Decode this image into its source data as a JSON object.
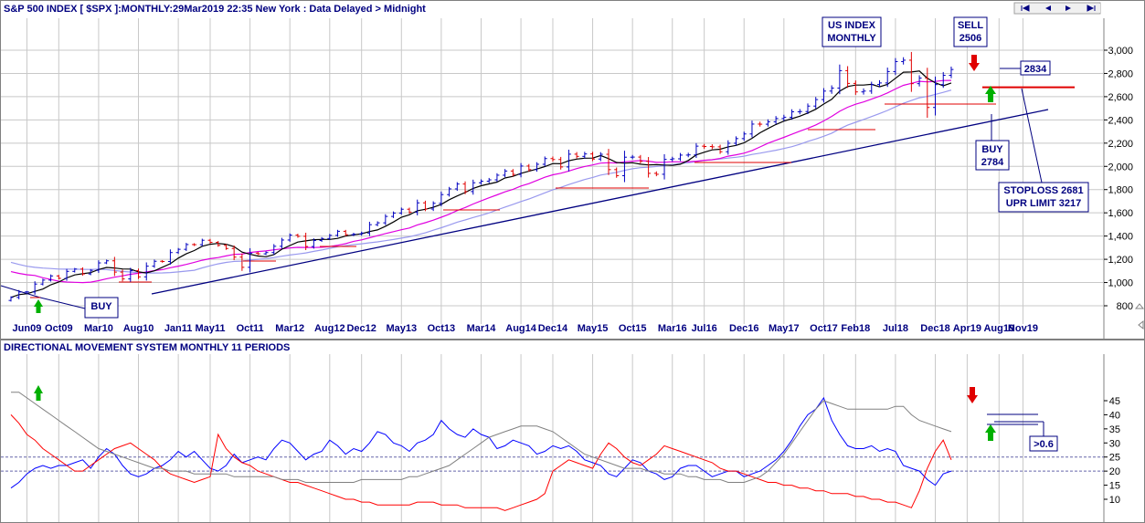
{
  "header": {
    "title": "S&P 500 INDEX [ $SPX ]:MONTHLY:29Mar2019 22:35 New York : Data Delayed > Midnight",
    "nav": [
      "first",
      "prev",
      "next",
      "last"
    ]
  },
  "lower_panel": {
    "title": "DIRECTIONAL MOVEMENT SYSTEM MONTHLY 11 PERIODS"
  },
  "annotations": {
    "us_index": [
      "US INDEX",
      "MONTHLY"
    ],
    "sell": [
      "SELL",
      "2506"
    ],
    "last_price": "2834",
    "buy_2784": [
      "BUY",
      "2784"
    ],
    "stoploss": [
      "STOPLOSS 2681",
      "UPR LIMIT 3217"
    ],
    "buy_2009": "BUY",
    "adx_note": ">0.6"
  },
  "colors": {
    "up_bar": "#0000c0",
    "down_bar": "#e00000",
    "sma_short": "#000000",
    "sma_medium": "#e000e0",
    "sma_long": "#9999ee",
    "trendline": "#000080",
    "support": "#e00000",
    "plus_di": "#0000ff",
    "minus_di": "#ff0000",
    "adx": "#808080",
    "grid": "#c8c8c8",
    "ref_line": "#6666aa"
  },
  "chart_data": [
    {
      "type": "ohlc",
      "title": "S&P 500 INDEX [ $SPX ]:MONTHLY:29Mar2019 22:35 New York : Data Delayed > Midnight",
      "x_tick_labels": [
        "Jun09",
        "Oct09",
        "Mar10",
        "Aug10",
        "Jan11",
        "May11",
        "Oct11",
        "Mar12",
        "Aug12",
        "Dec12",
        "May13",
        "Oct13",
        "Mar14",
        "Aug14",
        "Dec14",
        "May15",
        "Oct15",
        "Mar16",
        "Jul16",
        "Dec16",
        "May17",
        "Oct17",
        "Feb18",
        "Jul18",
        "Dec18",
        "Apr19",
        "Aug19",
        "Nov19"
      ],
      "y_ticks": [
        800,
        1000,
        1200,
        1400,
        1600,
        1800,
        2000,
        2200,
        2400,
        2600,
        2800,
        3000
      ],
      "ylim": [
        780,
        3060
      ],
      "x_start": "2009-04",
      "closes": [
        872,
        919,
        919,
        987,
        1021,
        1057,
        1036,
        1096,
        1116,
        1074,
        1105,
        1169,
        1187,
        1090,
        1031,
        1102,
        1049,
        1141,
        1183,
        1181,
        1258,
        1286,
        1327,
        1326,
        1364,
        1346,
        1320,
        1293,
        1219,
        1131,
        1253,
        1247,
        1258,
        1312,
        1366,
        1408,
        1398,
        1310,
        1362,
        1379,
        1406,
        1441,
        1412,
        1416,
        1426,
        1498,
        1514,
        1569,
        1598,
        1631,
        1606,
        1686,
        1633,
        1682,
        1757,
        1806,
        1848,
        1783,
        1859,
        1872,
        1884,
        1924,
        1960,
        1931,
        2003,
        1972,
        2018,
        2067,
        2059,
        1995,
        2105,
        2086,
        2107,
        2063,
        2104,
        1972,
        1920,
        2079,
        2080,
        2044,
        1940,
        1932,
        2060,
        2065,
        2097,
        2099,
        2174,
        2171,
        2168,
        2126,
        2199,
        2239,
        2279,
        2364,
        2363,
        2384,
        2412,
        2423,
        2470,
        2472,
        2519,
        2575,
        2648,
        2674,
        2824,
        2714,
        2641,
        2648,
        2705,
        2718,
        2816,
        2902,
        2914,
        2712,
        2760,
        2507,
        2704,
        2784,
        2834
      ],
      "moving_averages": [
        "sma_short",
        "sma_medium",
        "sma_long"
      ],
      "horizontal_levels": [
        2681,
        2784
      ],
      "annotation_prices": {
        "sell": 2506,
        "buy": 2784,
        "last": 2834,
        "stoploss": 2681,
        "upper_limit": 3217
      }
    },
    {
      "type": "line",
      "title": "DIRECTIONAL MOVEMENT SYSTEM MONTHLY 11 PERIODS",
      "y_ticks": [
        10,
        15,
        20,
        25,
        30,
        35,
        40,
        45
      ],
      "ylim": [
        5,
        50
      ],
      "reference_lines": [
        20,
        25
      ],
      "series": [
        {
          "key": "plus_di",
          "values": [
            14,
            16,
            19,
            21,
            22,
            21,
            22,
            22,
            23,
            24,
            21,
            25,
            28,
            26,
            22,
            19,
            18,
            19,
            21,
            22,
            24,
            27,
            25,
            27,
            24,
            21,
            20,
            22,
            26,
            23,
            24,
            25,
            24,
            28,
            31,
            30,
            27,
            24,
            26,
            27,
            31,
            29,
            26,
            28,
            27,
            30,
            34,
            33,
            30,
            29,
            27,
            30,
            31,
            33,
            38,
            35,
            33,
            32,
            35,
            33,
            32,
            28,
            29,
            31,
            30,
            29,
            26,
            27,
            29,
            28,
            29,
            27,
            24,
            23,
            22,
            19,
            18,
            21,
            24,
            23,
            20,
            19,
            17,
            18,
            21,
            22,
            22,
            20,
            18,
            19,
            20,
            20,
            18,
            19,
            20,
            22,
            24,
            27,
            31,
            36,
            40,
            42,
            46,
            38,
            33,
            29,
            28,
            28,
            29,
            27,
            28,
            27,
            22,
            21,
            20,
            17,
            15,
            19,
            20
          ]
        },
        {
          "key": "minus_di",
          "values": [
            40,
            37,
            33,
            31,
            28,
            26,
            24,
            22,
            20,
            20,
            22,
            24,
            26,
            28,
            29,
            30,
            28,
            26,
            24,
            21,
            19,
            18,
            17,
            16,
            17,
            18,
            33,
            28,
            25,
            23,
            22,
            20,
            19,
            18,
            17,
            16,
            16,
            15,
            14,
            13,
            12,
            11,
            10,
            10,
            9,
            9,
            8,
            8,
            8,
            8,
            8,
            9,
            9,
            9,
            8,
            8,
            8,
            7,
            7,
            7,
            7,
            7,
            6,
            7,
            8,
            9,
            10,
            12,
            20,
            22,
            24,
            23,
            22,
            21,
            26,
            30,
            28,
            25,
            23,
            22,
            24,
            26,
            29,
            28,
            27,
            26,
            25,
            24,
            23,
            21,
            20,
            20,
            19,
            18,
            17,
            16,
            16,
            15,
            15,
            14,
            14,
            13,
            13,
            12,
            12,
            12,
            11,
            11,
            10,
            10,
            9,
            9,
            8,
            7,
            13,
            21,
            27,
            31,
            24
          ]
        },
        {
          "key": "adx",
          "values": [
            48,
            48,
            46,
            44,
            42,
            40,
            38,
            36,
            34,
            32,
            30,
            28,
            27,
            26,
            25,
            24,
            23,
            22,
            21,
            21,
            20,
            20,
            20,
            19,
            19,
            19,
            19,
            19,
            18,
            18,
            18,
            18,
            18,
            18,
            17,
            17,
            17,
            16,
            16,
            16,
            16,
            16,
            16,
            16,
            17,
            17,
            17,
            17,
            17,
            17,
            18,
            18,
            19,
            20,
            21,
            22,
            24,
            26,
            28,
            30,
            32,
            33,
            34,
            35,
            36,
            36,
            36,
            35,
            34,
            32,
            30,
            28,
            26,
            25,
            24,
            23,
            22,
            21,
            21,
            21,
            20,
            20,
            19,
            19,
            19,
            18,
            18,
            17,
            17,
            17,
            16,
            16,
            16,
            17,
            18,
            20,
            23,
            26,
            30,
            34,
            38,
            42,
            45,
            44,
            43,
            42,
            42,
            42,
            42,
            42,
            42,
            43,
            43,
            40,
            38,
            37,
            36,
            35,
            34
          ]
        }
      ]
    }
  ]
}
